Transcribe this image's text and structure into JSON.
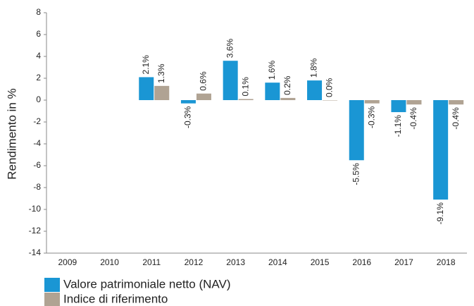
{
  "chart_data": {
    "type": "bar",
    "y_label": "Rendimento in %",
    "categories": [
      "2009",
      "2010",
      "2011",
      "2012",
      "2013",
      "2014",
      "2015",
      "2016",
      "2017",
      "2018"
    ],
    "series": [
      {
        "name": "Valore patrimoniale netto (NAV)",
        "color": "#1a96d4",
        "values": [
          null,
          null,
          2.1,
          -0.3,
          3.6,
          1.6,
          1.8,
          -5.5,
          -1.1,
          -9.1
        ],
        "value_labels": [
          null,
          null,
          "2.1%",
          "-0.3%",
          "3.6%",
          "1.6%",
          "1.8%",
          "-5.5%",
          "-1.1%",
          "-9.1%"
        ]
      },
      {
        "name": "Indice di riferimento",
        "color": "#b0a393",
        "values": [
          null,
          null,
          1.3,
          0.6,
          0.1,
          0.2,
          0.0,
          -0.3,
          -0.4,
          -0.4
        ],
        "value_labels": [
          null,
          null,
          "1.3%",
          "0.6%",
          "0.1%",
          "0.2%",
          "0.0%",
          "-0.3%",
          "-0.4%",
          "-0.4%"
        ]
      }
    ],
    "ylim": [
      -14,
      8
    ],
    "yticks": [
      -14,
      -12,
      -10,
      -8,
      -6,
      -4,
      -2,
      0,
      2,
      4,
      6,
      8
    ],
    "grid": false,
    "legend": "bottom-left"
  }
}
